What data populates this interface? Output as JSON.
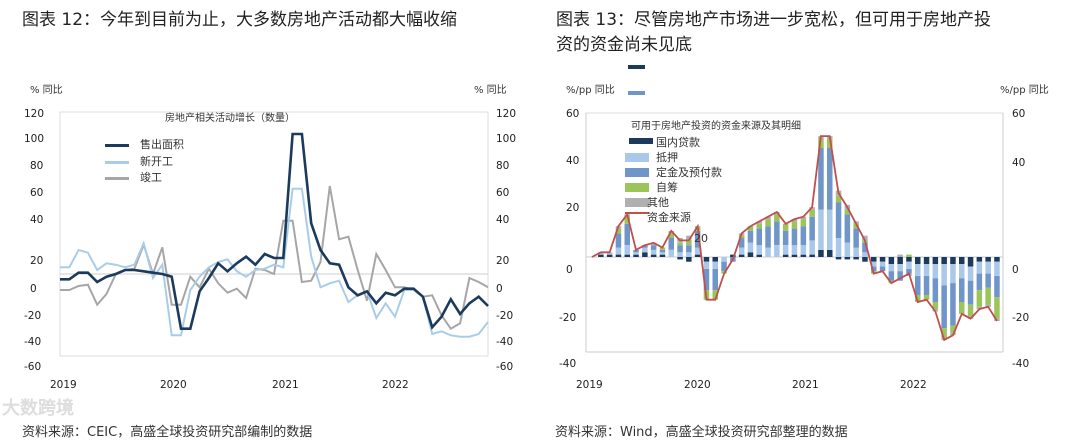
{
  "left": {
    "title": "图表 12：今年到目前为止，大多数房地产活动都大幅收缩",
    "source": "资料来源：CEIC，高盛全球投资研究部编制的数据",
    "watermark": "大数跨境"
  },
  "right": {
    "title_line1": "图表 13：尽管房地产市场进一步宽松，但可用于房地产投",
    "title_line2": "资的资金尚未见底",
    "source": "资料来源：Wind，高盛全球投资研究部整理的数据"
  },
  "chart_data": [
    {
      "type": "line",
      "title": "房地产相关活动增长（数量）",
      "ylabel_left": "% 同比",
      "ylabel_right": "% 同比",
      "yticks_left": [
        "120",
        "100",
        "80",
        "60",
        "40",
        "20",
        "0",
        "-20",
        "-40",
        "-60"
      ],
      "yticks_right": [
        "120",
        "100",
        "80",
        "60",
        "40",
        "20",
        "0",
        "-20",
        "-40",
        "-60"
      ],
      "xticks": [
        "2019",
        "2020",
        "2021",
        "2022"
      ],
      "x_range": [
        "2019-01",
        "2022-11"
      ],
      "ylim": [
        -60,
        120
      ],
      "legend_position": "top-left",
      "series": [
        {
          "name": "售出面积",
          "color": "#1b3a5c",
          "values": [
            -4,
            -4,
            1,
            1,
            -6,
            -2,
            0,
            3,
            3,
            2,
            1,
            0,
            -2,
            -41,
            -41,
            -13,
            -3,
            8,
            2,
            8,
            13,
            7,
            15,
            12,
            12,
            105,
            105,
            38,
            18,
            8,
            7,
            -10,
            -16,
            -13,
            -22,
            -14,
            -16,
            -11,
            -11,
            -17,
            -40,
            -32,
            -19,
            -30,
            -22,
            -17,
            -24
          ]
        },
        {
          "name": "新开工",
          "color": "#a9cde8",
          "values": [
            5,
            5,
            18,
            16,
            3,
            8,
            7,
            5,
            7,
            23,
            -3,
            7,
            -46,
            -46,
            -12,
            -2,
            5,
            9,
            11,
            2,
            -2,
            3,
            4,
            7,
            5,
            64,
            64,
            13,
            -10,
            -7,
            -5,
            -21,
            -16,
            -13,
            -33,
            -22,
            -32,
            -12,
            -12,
            -17,
            -45,
            -43,
            -46,
            -47,
            -47,
            -45,
            -36
          ]
        },
        {
          "name": "竣工",
          "color": "#a6a6a6",
          "values": [
            -12,
            -12,
            -9,
            -8,
            -23,
            -15,
            0,
            3,
            4,
            22,
            0,
            20,
            -23,
            -23,
            -2,
            -10,
            4,
            -7,
            -14,
            -11,
            -18,
            4,
            3,
            0,
            40,
            40,
            -6,
            -5,
            9,
            66,
            26,
            28,
            3,
            -20,
            15,
            3,
            -10,
            -10,
            -12,
            -17,
            -16,
            -31,
            -41,
            -37,
            -3,
            -6,
            -10
          ]
        }
      ]
    },
    {
      "type": "bar",
      "stacked": true,
      "title": "可用于房地产投资的资金来源及其明细",
      "ylabel_left": "%/pp 同比",
      "ylabel_right": "%/pp 同比",
      "yticks_left": [
        "60",
        "40",
        "20",
        "0",
        "-20",
        "-40"
      ],
      "yticks_right": [
        "60",
        "40",
        "0",
        "-20",
        "-40"
      ],
      "xticks": [
        "2019",
        "2020",
        "2021",
        "2022"
      ],
      "x_range": [
        "2019-01",
        "2022-11"
      ],
      "ylim": [
        -40,
        60
      ],
      "legend_position": "top-left",
      "stray_label": "20",
      "series": [
        {
          "name": "国内贷款",
          "color": "#1b3a5c",
          "values": [
            0,
            1,
            1,
            1,
            1,
            1,
            2,
            1,
            1,
            0,
            -1,
            -2,
            1,
            -2,
            -2,
            0,
            1,
            1,
            2,
            1,
            0,
            0,
            1,
            1,
            1,
            1,
            3,
            3,
            -1,
            -1,
            -1,
            -2,
            -2,
            -2,
            -3,
            -3,
            -2,
            -3,
            -3,
            -3,
            -3,
            -3,
            -3,
            -4,
            -2,
            -2,
            -2
          ]
        },
        {
          "name": "抵押",
          "color": "#a9c8ea",
          "values": [
            0,
            1,
            1,
            3,
            4,
            1,
            2,
            2,
            1,
            3,
            2,
            2,
            3,
            -3,
            -3,
            -2,
            0,
            3,
            4,
            4,
            4,
            5,
            4,
            4,
            4,
            6,
            17,
            17,
            8,
            6,
            4,
            2,
            -2,
            -2,
            -3,
            -3,
            -3,
            -5,
            -5,
            -6,
            -9,
            -8,
            -6,
            -6,
            -5,
            -5,
            -6
          ]
        },
        {
          "name": "定金及预付款",
          "color": "#6f95c9",
          "values": [
            0,
            0,
            0,
            6,
            9,
            1,
            1,
            2,
            1,
            5,
            3,
            3,
            7,
            -9,
            -9,
            -4,
            -2,
            4,
            5,
            7,
            9,
            10,
            6,
            7,
            8,
            10,
            26,
            26,
            15,
            12,
            8,
            4,
            -2,
            -2,
            -4,
            -4,
            -2,
            -8,
            -8,
            -10,
            -18,
            -18,
            -10,
            -10,
            -7,
            -6,
            -9
          ]
        },
        {
          "name": "自筹",
          "color": "#9bc55a",
          "values": [
            0,
            0,
            0,
            2,
            3,
            0,
            0,
            0,
            1,
            2,
            1,
            2,
            2,
            -4,
            -4,
            -1,
            0,
            1,
            2,
            2,
            3,
            3,
            3,
            3,
            3,
            3,
            4,
            4,
            3,
            2,
            2,
            1,
            -1,
            0,
            -1,
            0,
            1,
            -3,
            -2,
            -3,
            -4,
            -3,
            -5,
            -5,
            -7,
            -7,
            -9
          ]
        },
        {
          "name": "其他",
          "color": "#b0b0b0"
        },
        {
          "name": "资金来源",
          "type": "line",
          "color": "#c0504d",
          "values": [
            0,
            2,
            2,
            13,
            18,
            3,
            5,
            6,
            4,
            11,
            7,
            7,
            13,
            -18,
            -18,
            -7,
            -1,
            10,
            13,
            15,
            17,
            19,
            14,
            16,
            17,
            21,
            51,
            51,
            27,
            21,
            14,
            7,
            -7,
            -6,
            -11,
            -9,
            -7,
            -19,
            -18,
            -23,
            -35,
            -33,
            -24,
            -26,
            -22,
            -21,
            -27
          ]
        }
      ]
    }
  ]
}
